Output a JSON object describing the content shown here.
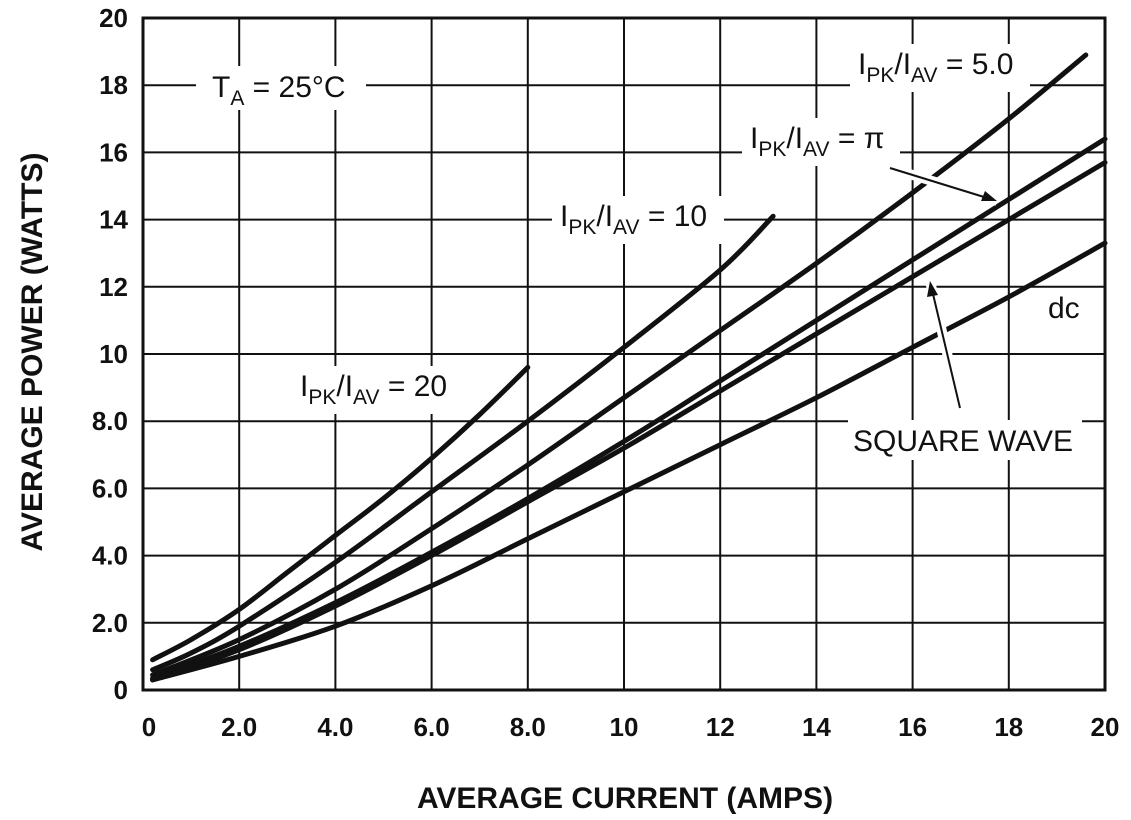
{
  "chart_data": {
    "type": "line",
    "xlabel": "AVERAGE CURRENT (AMPS)",
    "ylabel": "AVERAGE POWER (WATTS)",
    "xlim": [
      0,
      20
    ],
    "ylim": [
      0,
      20
    ],
    "x_ticks": [
      "0",
      "2.0",
      "4.0",
      "6.0",
      "8.0",
      "10",
      "12",
      "14",
      "16",
      "18",
      "20"
    ],
    "y_ticks": [
      "0",
      "2.0",
      "4.0",
      "6.0",
      "8.0",
      "10",
      "12",
      "14",
      "16",
      "18",
      "20"
    ],
    "grid": true,
    "annotations": {
      "temp": {
        "main": "T",
        "sub": "A",
        "rest": " = 25°C"
      },
      "r20": {
        "a": "I",
        "a_sub": "PK",
        "b": "/I",
        "b_sub": "AV",
        "val": " = 20"
      },
      "r10": {
        "a": "I",
        "a_sub": "PK",
        "b": "/I",
        "b_sub": "AV",
        "val": " = 10"
      },
      "r5": {
        "a": "I",
        "a_sub": "PK",
        "b": "/I",
        "b_sub": "AV",
        "val": " = 5.0"
      },
      "rpi": {
        "a": "I",
        "a_sub": "PK",
        "b": "/I",
        "b_sub": "AV",
        "val": " = π"
      },
      "dc": "dc",
      "square": "SQUARE WAVE"
    },
    "series": [
      {
        "key": "r20",
        "x": [
          0.2,
          1,
          2,
          3,
          4,
          5,
          6,
          7,
          8.0
        ],
        "y": [
          0.9,
          1.5,
          2.4,
          3.5,
          4.6,
          5.7,
          6.9,
          8.2,
          9.6
        ]
      },
      {
        "key": "r10",
        "x": [
          0.2,
          1,
          2,
          4,
          6,
          8,
          10,
          12,
          13.1
        ],
        "y": [
          0.6,
          1.1,
          1.9,
          3.8,
          5.9,
          8.0,
          10.2,
          12.5,
          14.1
        ]
      },
      {
        "key": "r5",
        "x": [
          0.2,
          2,
          4,
          6,
          8,
          10,
          12,
          14,
          16,
          18,
          19.6
        ],
        "y": [
          0.45,
          1.5,
          3.0,
          4.8,
          6.7,
          8.7,
          10.7,
          12.7,
          14.8,
          17.0,
          18.9
        ]
      },
      {
        "key": "rpi",
        "x": [
          0.2,
          2,
          4,
          6,
          8,
          10,
          12,
          14,
          16,
          18,
          20
        ],
        "y": [
          0.35,
          1.3,
          2.6,
          4.1,
          5.7,
          7.4,
          9.2,
          11.0,
          12.8,
          14.6,
          16.4
        ]
      },
      {
        "key": "square",
        "x": [
          0.2,
          2,
          4,
          6,
          8,
          10,
          12,
          14,
          16,
          18,
          20
        ],
        "y": [
          0.3,
          1.2,
          2.5,
          4.0,
          5.6,
          7.2,
          8.9,
          10.6,
          12.3,
          14.0,
          15.7
        ]
      },
      {
        "key": "dc",
        "x": [
          0.2,
          2,
          4,
          6,
          8,
          10,
          12,
          14,
          16,
          18,
          20
        ],
        "y": [
          0.3,
          1.0,
          1.9,
          3.1,
          4.5,
          5.9,
          7.3,
          8.7,
          10.2,
          11.7,
          13.3
        ]
      }
    ]
  }
}
